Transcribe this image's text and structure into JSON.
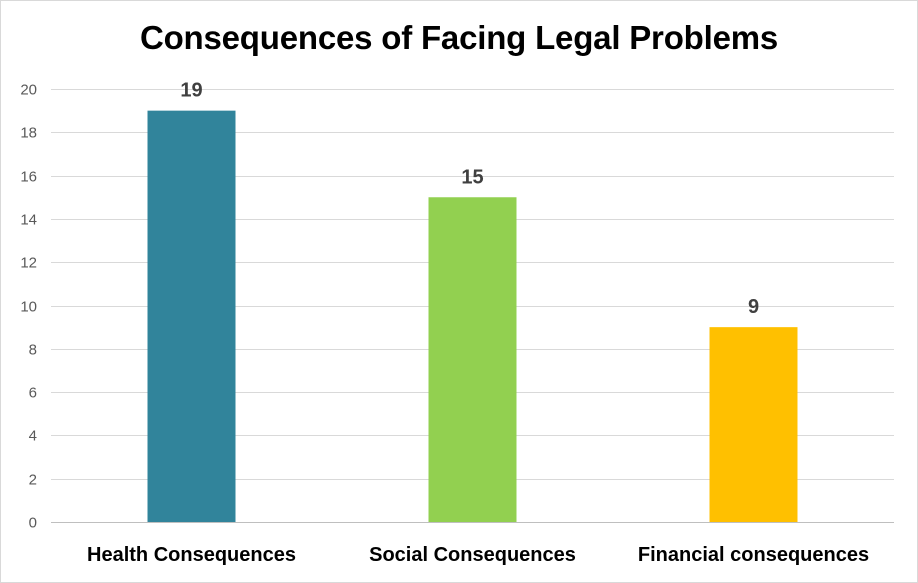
{
  "chart_data": {
    "type": "bar",
    "title": "Consequences of Facing Legal Problems",
    "xlabel": "",
    "ylabel": "",
    "categories": [
      "Health Consequences",
      "Social Consequences",
      "Financial consequences"
    ],
    "values": [
      19,
      15,
      9
    ],
    "data_labels": [
      "19",
      "15",
      "9"
    ],
    "colors": [
      "#31849b",
      "#92d050",
      "#ffc000"
    ],
    "ylim": [
      0,
      20
    ],
    "yticks": [
      0,
      2,
      4,
      6,
      8,
      10,
      12,
      14,
      16,
      18,
      20
    ],
    "grid": true,
    "legend": "none"
  }
}
